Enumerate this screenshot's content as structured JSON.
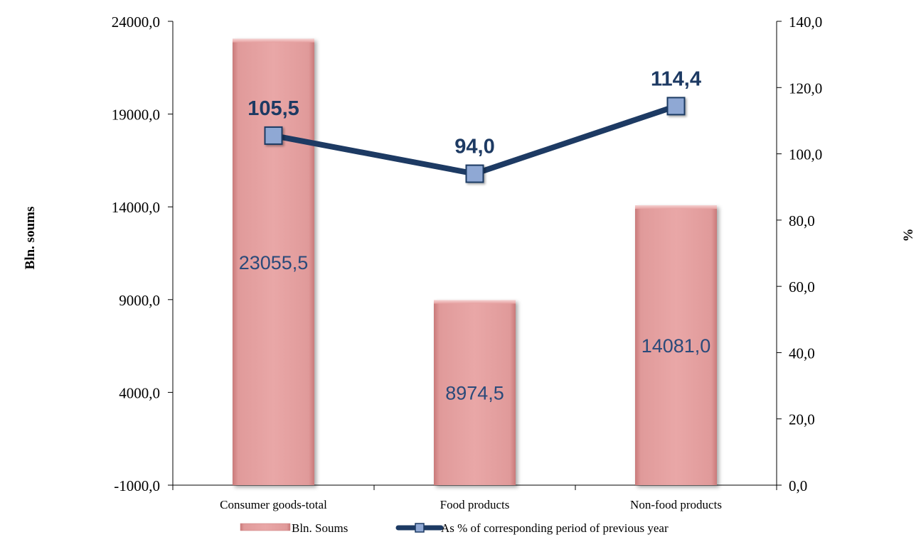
{
  "chart_data": {
    "type": "bar",
    "categories": [
      "Consumer goods-total",
      "Food products",
      "Non-food products"
    ],
    "series": [
      {
        "name": "Bln. Soums",
        "type": "bar",
        "axis": "left",
        "values": [
          23055.5,
          8974.5,
          14081.0
        ],
        "labels": [
          "23055,5",
          "8974,5",
          "14081,0"
        ],
        "color": "#e6a0a0"
      },
      {
        "name": "As % of corresponding period of previous year",
        "type": "line",
        "axis": "right",
        "values": [
          105.5,
          94.0,
          114.4
        ],
        "labels": [
          "105,5",
          "94,0",
          "114,4"
        ],
        "color": "#1d3a63",
        "marker_color": "#8fa8d4"
      }
    ],
    "y_left": {
      "label": "Bln. soums",
      "ylim": [
        -1000,
        24000
      ],
      "ticks": [
        "-1000,0",
        "4000,0",
        "9000,0",
        "14000,0",
        "19000,0",
        "24000,0"
      ],
      "tick_values": [
        -1000,
        4000,
        9000,
        14000,
        19000,
        24000
      ]
    },
    "y_right": {
      "label": "%",
      "ylim": [
        0,
        140
      ],
      "ticks": [
        "0,0",
        "20,0",
        "40,0",
        "60,0",
        "80,0",
        "100,0",
        "120,0",
        "140,0"
      ],
      "tick_values": [
        0,
        20,
        40,
        60,
        80,
        100,
        120,
        140
      ]
    },
    "grid": false,
    "legend_position": "bottom"
  }
}
